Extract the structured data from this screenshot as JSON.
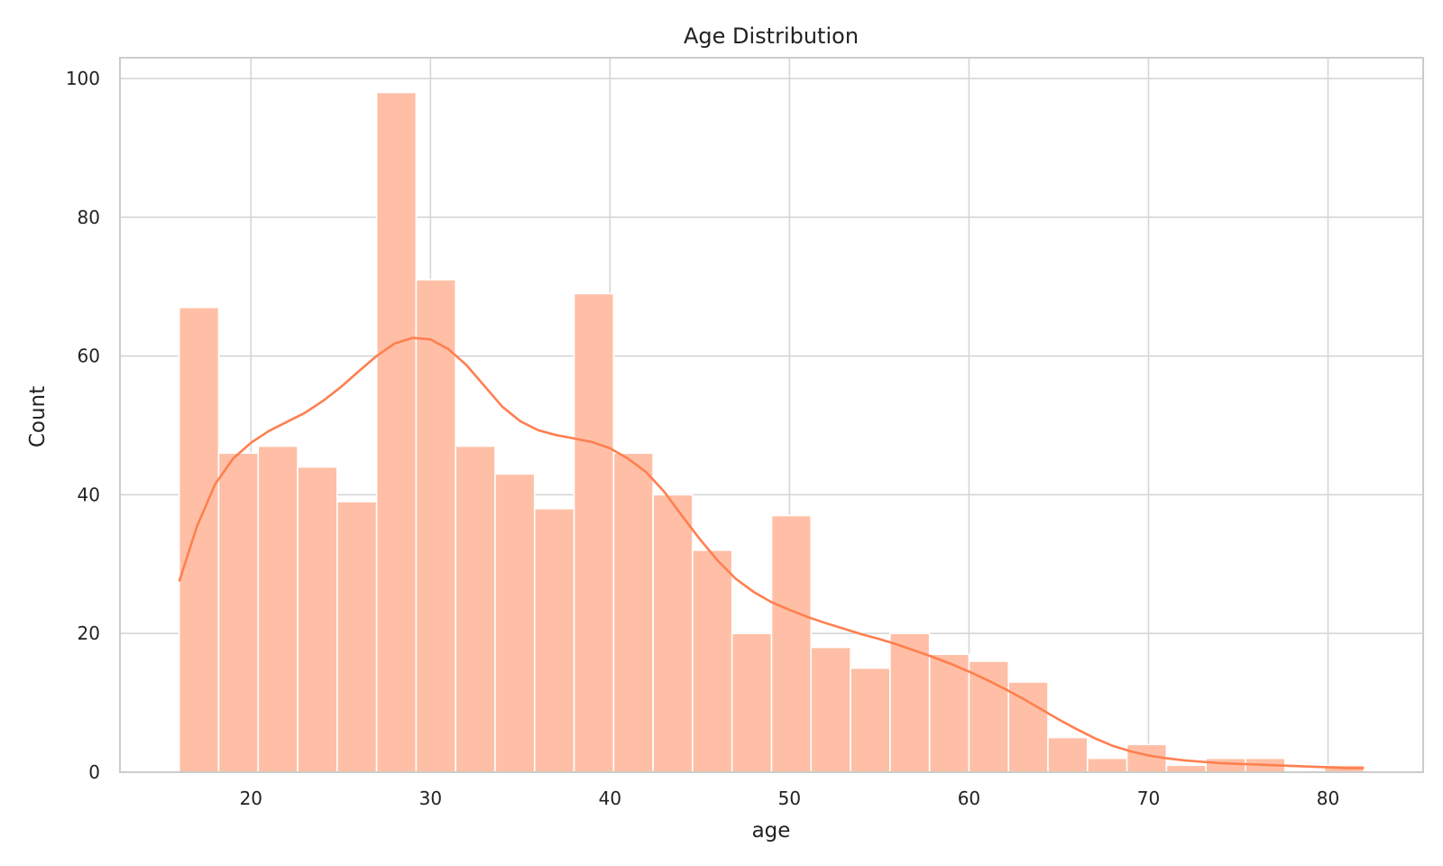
{
  "chart_data": {
    "type": "histogram",
    "title": "Age Distribution",
    "xlabel": "age",
    "ylabel": "Count",
    "xlim": [
      12.7,
      85.3
    ],
    "ylim": [
      0,
      103
    ],
    "xticks": [
      20,
      30,
      40,
      50,
      60,
      70,
      80
    ],
    "yticks": [
      0,
      20,
      40,
      60,
      80,
      100
    ],
    "grid": true,
    "bar_color": "#ffbfa6",
    "kde_color": "#ff7f4f",
    "bin_start": 16,
    "bin_width": 2.2,
    "bins": [
      {
        "x0": 16.0,
        "x1": 18.2,
        "count": 67
      },
      {
        "x0": 18.2,
        "x1": 20.4,
        "count": 46
      },
      {
        "x0": 20.4,
        "x1": 22.6,
        "count": 47
      },
      {
        "x0": 22.6,
        "x1": 24.8,
        "count": 44
      },
      {
        "x0": 24.8,
        "x1": 27.0,
        "count": 39
      },
      {
        "x0": 27.0,
        "x1": 29.2,
        "count": 98
      },
      {
        "x0": 29.2,
        "x1": 31.4,
        "count": 71
      },
      {
        "x0": 31.4,
        "x1": 33.6,
        "count": 47
      },
      {
        "x0": 33.6,
        "x1": 35.8,
        "count": 43
      },
      {
        "x0": 35.8,
        "x1": 38.0,
        "count": 38
      },
      {
        "x0": 38.0,
        "x1": 40.2,
        "count": 69
      },
      {
        "x0": 40.2,
        "x1": 42.4,
        "count": 46
      },
      {
        "x0": 42.4,
        "x1": 44.6,
        "count": 40
      },
      {
        "x0": 44.6,
        "x1": 46.8,
        "count": 32
      },
      {
        "x0": 46.8,
        "x1": 49.0,
        "count": 20
      },
      {
        "x0": 49.0,
        "x1": 51.2,
        "count": 37
      },
      {
        "x0": 51.2,
        "x1": 53.4,
        "count": 18
      },
      {
        "x0": 53.4,
        "x1": 55.6,
        "count": 15
      },
      {
        "x0": 55.6,
        "x1": 57.8,
        "count": 20
      },
      {
        "x0": 57.8,
        "x1": 60.0,
        "count": 17
      },
      {
        "x0": 60.0,
        "x1": 62.2,
        "count": 16
      },
      {
        "x0": 62.2,
        "x1": 64.4,
        "count": 13
      },
      {
        "x0": 64.4,
        "x1": 66.6,
        "count": 5
      },
      {
        "x0": 66.6,
        "x1": 68.8,
        "count": 2
      },
      {
        "x0": 68.8,
        "x1": 71.0,
        "count": 4
      },
      {
        "x0": 71.0,
        "x1": 73.2,
        "count": 1
      },
      {
        "x0": 73.2,
        "x1": 75.4,
        "count": 2
      },
      {
        "x0": 75.4,
        "x1": 77.6,
        "count": 2
      },
      {
        "x0": 77.6,
        "x1": 79.8,
        "count": 0
      },
      {
        "x0": 79.8,
        "x1": 82.0,
        "count": 1
      }
    ],
    "kde": {
      "x": [
        16,
        17,
        18,
        19,
        20,
        21,
        22,
        23,
        24,
        25,
        26,
        27,
        28,
        29,
        30,
        31,
        32,
        33,
        34,
        35,
        36,
        37,
        38,
        39,
        40,
        41,
        42,
        43,
        44,
        45,
        46,
        47,
        48,
        49,
        50,
        51,
        52,
        53,
        54,
        55,
        56,
        57,
        58,
        59,
        60,
        61,
        62,
        63,
        64,
        65,
        66,
        67,
        68,
        69,
        70,
        71,
        72,
        73,
        74,
        75,
        76,
        77,
        78,
        79,
        80,
        81,
        82
      ],
      "y": [
        27.5,
        35.5,
        41.5,
        45.2,
        47.5,
        49.2,
        50.5,
        51.8,
        53.5,
        55.5,
        57.8,
        60.0,
        61.8,
        62.6,
        62.4,
        61.0,
        58.7,
        55.7,
        52.7,
        50.6,
        49.3,
        48.6,
        48.1,
        47.6,
        46.7,
        45.2,
        43.3,
        40.5,
        37.0,
        33.6,
        30.5,
        27.9,
        26.0,
        24.5,
        23.4,
        22.4,
        21.5,
        20.7,
        19.9,
        19.2,
        18.4,
        17.5,
        16.6,
        15.6,
        14.5,
        13.3,
        12.0,
        10.6,
        9.1,
        7.6,
        6.2,
        4.9,
        3.8,
        3.0,
        2.4,
        2.0,
        1.7,
        1.5,
        1.3,
        1.2,
        1.1,
        1.0,
        0.9,
        0.8,
        0.7,
        0.6,
        0.6
      ]
    }
  }
}
